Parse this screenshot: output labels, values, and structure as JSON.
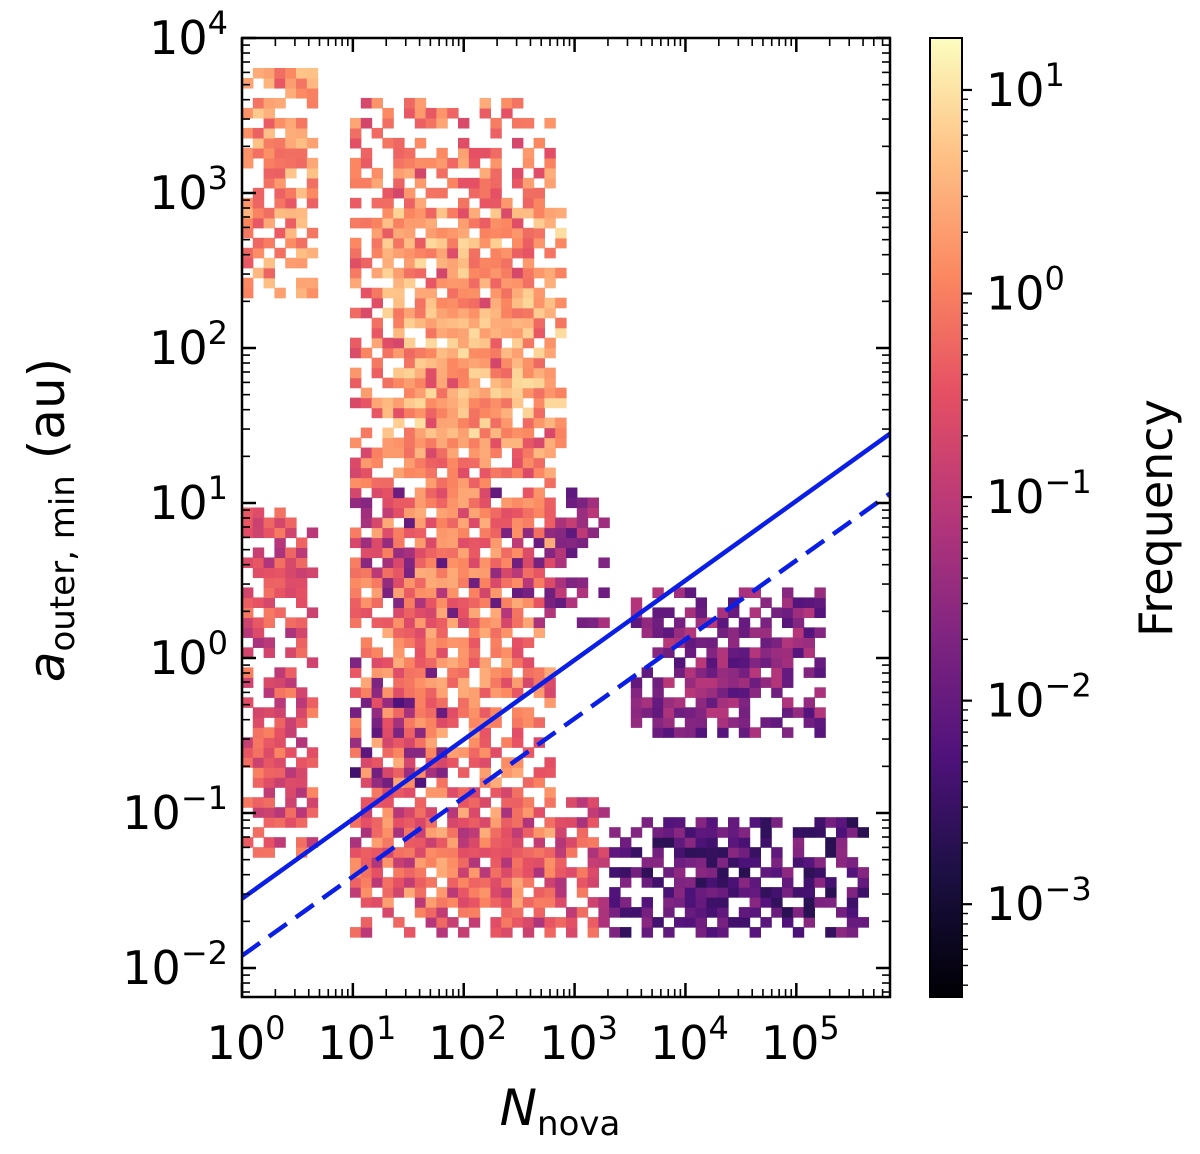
{
  "chart_data": {
    "type": "heatmap",
    "title": "",
    "xlabel": {
      "main": "N",
      "sub": "nova"
    },
    "ylabel": {
      "main": "a",
      "sub": "outer, min",
      "unit": "(au)"
    },
    "x_scale": "log",
    "y_scale": "log",
    "xlim": [
      1,
      700000
    ],
    "ylim": [
      0.0065,
      10000
    ],
    "x_ticks": [
      {
        "value": 1,
        "base": "10",
        "exp": "0"
      },
      {
        "value": 10,
        "base": "10",
        "exp": "1"
      },
      {
        "value": 100,
        "base": "10",
        "exp": "2"
      },
      {
        "value": 1000,
        "base": "10",
        "exp": "3"
      },
      {
        "value": 10000,
        "base": "10",
        "exp": "4"
      },
      {
        "value": 100000,
        "base": "10",
        "exp": "5"
      }
    ],
    "y_ticks": [
      {
        "value": 0.01,
        "base": "10",
        "exp": "−2"
      },
      {
        "value": 0.1,
        "base": "10",
        "exp": "−1"
      },
      {
        "value": 1,
        "base": "10",
        "exp": "0"
      },
      {
        "value": 10,
        "base": "10",
        "exp": "1"
      },
      {
        "value": 100,
        "base": "10",
        "exp": "2"
      },
      {
        "value": 1000,
        "base": "10",
        "exp": "3"
      },
      {
        "value": 10000,
        "base": "10",
        "exp": "4"
      }
    ],
    "colorbar": {
      "label": "Frequency",
      "scale": "log",
      "range": [
        0.00035,
        18
      ],
      "ticks": [
        {
          "value": 0.001,
          "base": "10",
          "exp": "−3"
        },
        {
          "value": 0.01,
          "base": "10",
          "exp": "−2"
        },
        {
          "value": 0.1,
          "base": "10",
          "exp": "−1"
        },
        {
          "value": 1,
          "base": "10",
          "exp": "0"
        },
        {
          "value": 10,
          "base": "10",
          "exp": "1"
        }
      ],
      "colormap": "magma"
    },
    "lines": [
      {
        "style": "solid",
        "color": "#0a1ee6",
        "x": [
          1,
          700000
        ],
        "y": [
          0.028,
          28
        ]
      },
      {
        "style": "dashed",
        "color": "#0a1ee6",
        "x": [
          1,
          700000
        ],
        "y": [
          0.012,
          11.5
        ]
      }
    ],
    "density_regions": [
      {
        "x_range": [
          1,
          5
        ],
        "y_range": [
          1,
          10
        ],
        "level": 0.3
      },
      {
        "x_range": [
          1,
          5
        ],
        "y_range": [
          0.05,
          1
        ],
        "level": 0.4
      },
      {
        "x_range": [
          1,
          5
        ],
        "y_range": [
          200,
          6000
        ],
        "level": 2
      },
      {
        "x_range": [
          10,
          600
        ],
        "y_range": [
          0.02,
          4000
        ],
        "level": 1
      },
      {
        "x_range": [
          20,
          800
        ],
        "y_range": [
          20,
          800
        ],
        "level": 3
      },
      {
        "x_range": [
          10,
          2000
        ],
        "y_range": [
          1.5,
          12
        ],
        "level": 0.04
      },
      {
        "x_range": [
          10,
          100
        ],
        "y_range": [
          0.15,
          1
        ],
        "level": 0.02
      },
      {
        "x_range": [
          3000,
          200000
        ],
        "y_range": [
          0.3,
          3
        ],
        "level": 0.03
      },
      {
        "x_range": [
          10,
          2000
        ],
        "y_range": [
          0.015,
          0.12
        ],
        "level": 0.3
      },
      {
        "x_range": [
          2000,
          400000
        ],
        "y_range": [
          0.015,
          0.1
        ],
        "level": 0.01
      }
    ]
  }
}
